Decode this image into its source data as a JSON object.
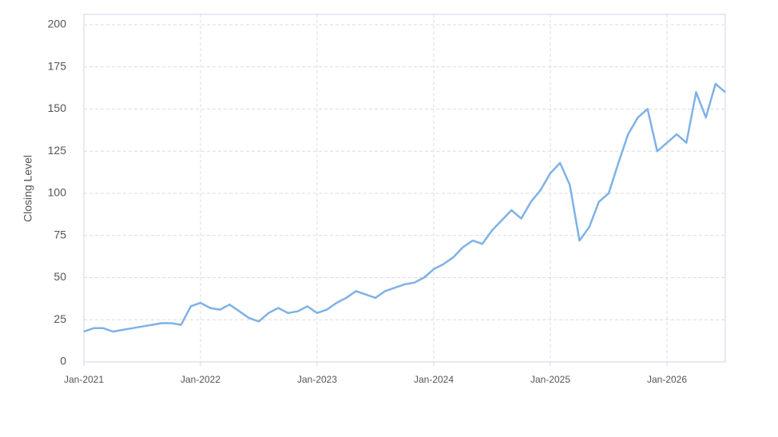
{
  "chart_data": {
    "type": "line",
    "y_label": "Closing Level",
    "x": [
      "2021-01",
      "2021-02",
      "2021-03",
      "2021-04",
      "2021-05",
      "2021-06",
      "2021-07",
      "2021-08",
      "2021-09",
      "2021-10",
      "2021-11",
      "2021-12",
      "2022-01",
      "2022-02",
      "2022-03",
      "2022-04",
      "2022-05",
      "2022-06",
      "2022-07",
      "2022-08",
      "2022-09",
      "2022-10",
      "2022-11",
      "2022-12",
      "2023-01",
      "2023-02",
      "2023-03",
      "2023-04",
      "2023-05",
      "2023-06",
      "2023-07",
      "2023-08",
      "2023-09",
      "2023-10",
      "2023-11",
      "2023-12",
      "2024-01",
      "2024-02",
      "2024-03",
      "2024-04",
      "2024-05",
      "2024-06",
      "2024-07",
      "2024-08",
      "2024-09",
      "2024-10",
      "2024-11",
      "2024-12",
      "2025-01",
      "2025-02",
      "2025-03",
      "2025-04",
      "2025-05",
      "2025-06",
      "2025-07",
      "2025-08",
      "2025-09",
      "2025-10",
      "2025-11",
      "2025-12",
      "2026-01",
      "2026-02",
      "2026-03",
      "2026-04",
      "2026-05",
      "2026-06",
      "2026-07"
    ],
    "series": [
      {
        "color": "#7fb2e5",
        "values": [
          18,
          20,
          20,
          18,
          19,
          20,
          21,
          22,
          23,
          23,
          22,
          33,
          35,
          32,
          31,
          34,
          30,
          26,
          24,
          29,
          32,
          29,
          30,
          33,
          29,
          31,
          35,
          38,
          42,
          40,
          38,
          42,
          44,
          46,
          47,
          50,
          55,
          58,
          62,
          68,
          72,
          70,
          78,
          84,
          90,
          85,
          95,
          102,
          112,
          118,
          105,
          72,
          80,
          95,
          100,
          118,
          135,
          145,
          150,
          125,
          130,
          135,
          130,
          160,
          145,
          165,
          160
        ]
      }
    ],
    "xlim": [
      "2021-01",
      "2026-07"
    ],
    "xticks": [
      {
        "value": "2021-01",
        "label": "Jan-2021"
      },
      {
        "value": "2022-01",
        "label": "Jan-2022"
      },
      {
        "value": "2023-01",
        "label": "Jan-2023"
      },
      {
        "value": "2024-01",
        "label": "Jan-2024"
      },
      {
        "value": "2025-01",
        "label": "Jan-2025"
      },
      {
        "value": "2026-01",
        "label": "Jan-2026"
      }
    ],
    "ylim": [
      0,
      200
    ],
    "yticks": [
      0,
      25,
      50,
      75,
      100,
      125,
      150,
      175,
      200
    ],
    "grid": true
  }
}
